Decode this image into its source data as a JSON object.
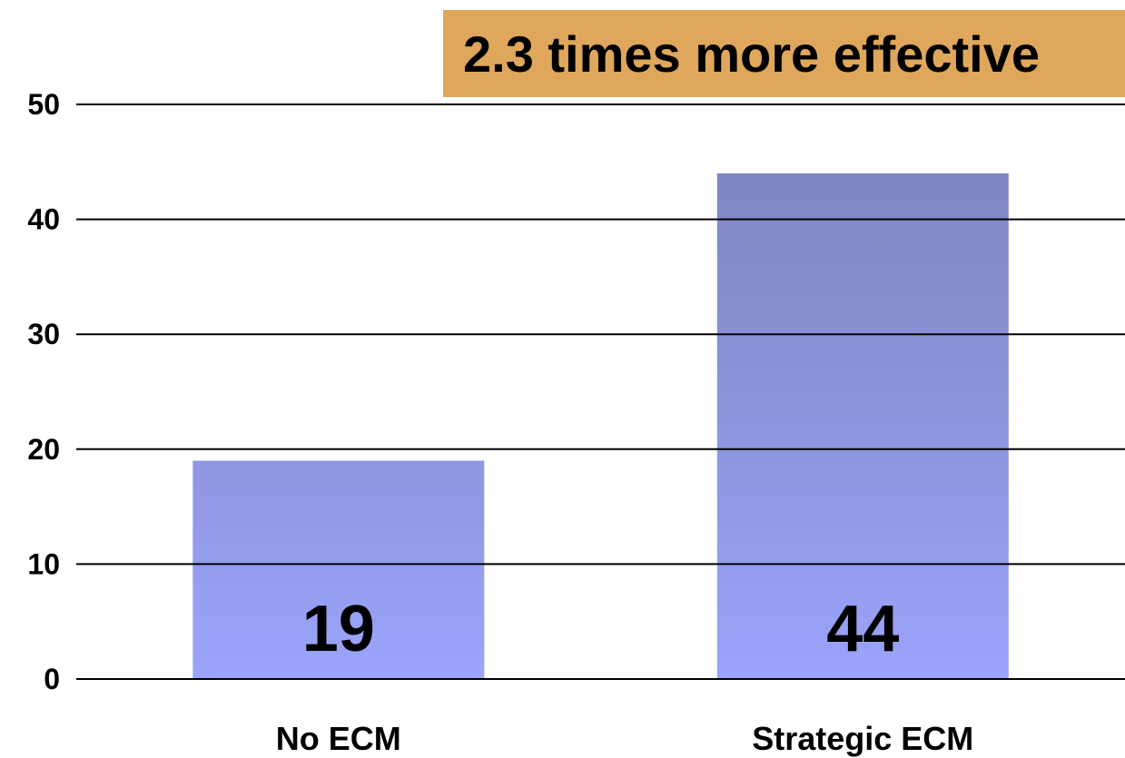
{
  "chart_data": {
    "type": "bar",
    "title": "",
    "xlabel": "",
    "ylabel": "",
    "categories": [
      "No ECM",
      "Strategic ECM"
    ],
    "values": [
      19,
      44
    ],
    "data_labels": [
      "19",
      "44"
    ],
    "ylim": [
      0,
      50
    ],
    "yticks": [
      0,
      10,
      20,
      30,
      40,
      50
    ],
    "ytick_labels": [
      "0",
      "10",
      "20",
      "30",
      "40",
      "50"
    ],
    "grid": true,
    "legend": "none",
    "annotation": "2.3 times more effective",
    "colors": {
      "bar_top": "#7b83ba",
      "bar_bottom": "#9ba3fa",
      "annotation_bg": "#dea75c",
      "gridline": "#000000",
      "text": "#000000"
    }
  }
}
